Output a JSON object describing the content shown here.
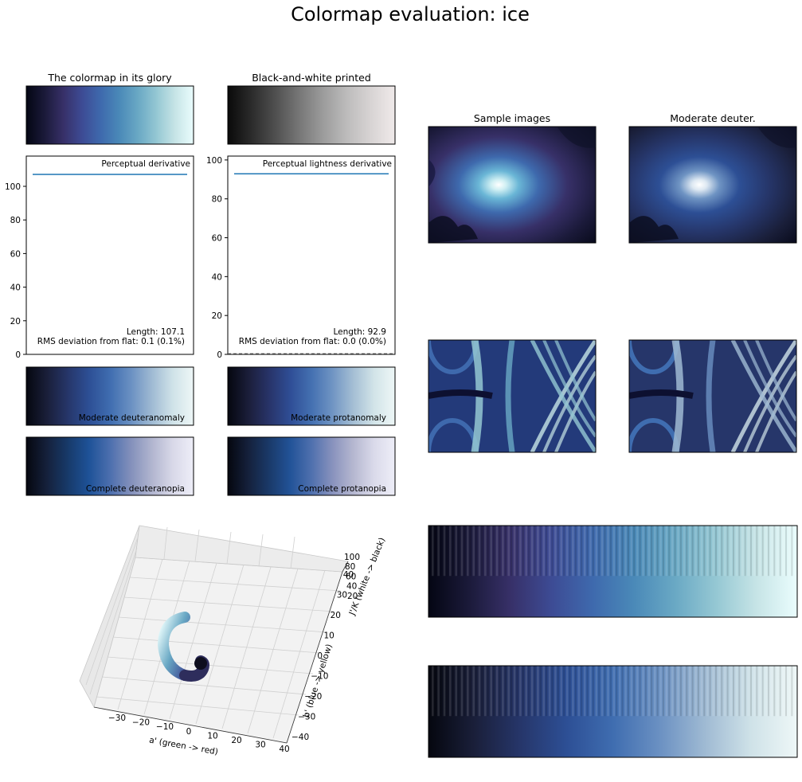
{
  "figure": {
    "title": "Colormap evaluation: ice"
  },
  "colors": {
    "ice": [
      "#040613",
      "#1b1a3a",
      "#373068",
      "#3d4b94",
      "#3e69ad",
      "#4a89b8",
      "#69a8c4",
      "#94c7d3",
      "#c6e4e6",
      "#eafdfd"
    ],
    "grayscale": [
      "#0a0a0a",
      "#2b2b2b",
      "#505050",
      "#777777",
      "#9c9c9c",
      "#bdbcbc",
      "#d8d4d4",
      "#f0eaea"
    ],
    "deuteranomaly": [
      "#05070f",
      "#1a1f3a",
      "#26366a",
      "#2d4f95",
      "#3f6db0",
      "#6a90c2",
      "#9fbad3",
      "#cfe2e8",
      "#eef7f7"
    ],
    "protanomaly": [
      "#05070f",
      "#1b1e3a",
      "#28346a",
      "#2f4e96",
      "#4470b1",
      "#6f94c3",
      "#a4bed4",
      "#d2e4e8",
      "#eef7f7"
    ],
    "deuteranopia": [
      "#05070f",
      "#15213c",
      "#173a6a",
      "#1e5298",
      "#4c6fae",
      "#8390bb",
      "#b1b5cf",
      "#d8d8e8",
      "#eeeef8"
    ],
    "protanopia": [
      "#05070f",
      "#15213c",
      "#1a3a6a",
      "#225398",
      "#4f70ae",
      "#8892bd",
      "#b5b7d0",
      "#dadaea",
      "#eeeef8"
    ],
    "line": "#1f77b4"
  },
  "panels": {
    "glory_title": "The colormap in its glory",
    "bw_title": "Black-and-white printed",
    "sample_title": "Sample images",
    "deuter_title": "Moderate deuter.",
    "deuteranomaly_label": "Moderate deuteranomaly",
    "protanomaly_label": "Moderate protanomaly",
    "deuteranopia_label": "Complete deuteranopia",
    "protanopia_label": "Complete protanopia"
  },
  "chart_data": [
    {
      "type": "line",
      "title": "",
      "legend": "Perceptual derivative",
      "x": [
        0,
        0.25,
        0.5,
        0.75,
        1
      ],
      "values": [
        107.1,
        107.1,
        107.1,
        107.1,
        107.1
      ],
      "ylim": [
        0,
        118
      ],
      "yticks": [
        "0",
        "20",
        "40",
        "60",
        "80",
        "100"
      ],
      "annotations": [
        "Length: 107.1",
        "RMS deviation from flat: 0.1 (0.1%)"
      ]
    },
    {
      "type": "line",
      "title": "",
      "legend": "Perceptual lightness derivative",
      "x": [
        0,
        0.25,
        0.5,
        0.75,
        1
      ],
      "values": [
        92.9,
        92.9,
        92.9,
        92.9,
        92.9
      ],
      "ylim": [
        0,
        102
      ],
      "yticks": [
        "0",
        "20",
        "40",
        "60",
        "80",
        "100"
      ],
      "annotations": [
        "Length: 92.9",
        "RMS deviation from flat: 0.0 (0.0%)"
      ]
    },
    {
      "type": "scatter",
      "xlabel": "a' (green -> red)",
      "ylabel": "b' (blue -> yellow)",
      "zlabel": "J'/K (white -> black)",
      "xticks": [
        "−30",
        "−20",
        "−10",
        "0",
        "10",
        "20",
        "30",
        "40"
      ],
      "yticks": [
        "−40",
        "−30",
        "−20",
        "−10",
        "0",
        "10",
        "20",
        "30",
        "40"
      ],
      "zticks": [
        "20",
        "40",
        "60",
        "80",
        "100"
      ]
    }
  ]
}
